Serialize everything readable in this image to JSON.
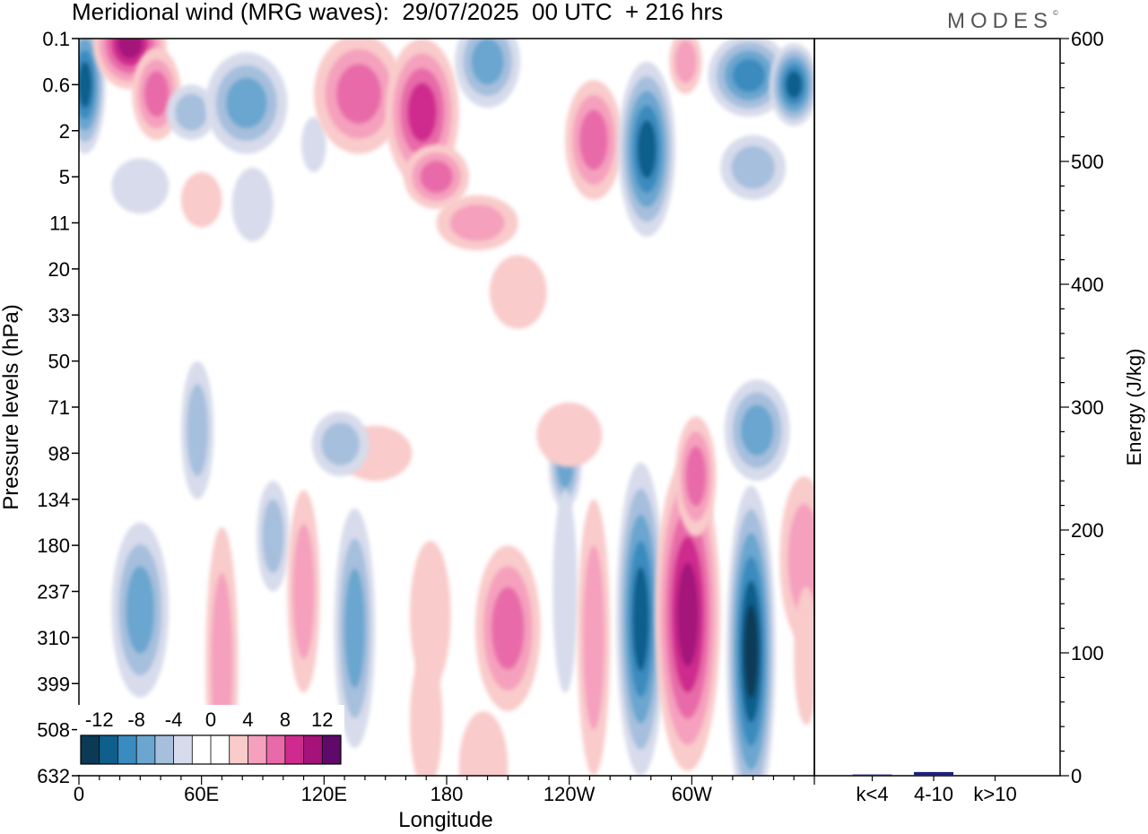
{
  "chart_data": {
    "type": "heatmap",
    "title": "Meridional wind (MRG waves):  29/07/2025  00 UTC  + 216 hrs",
    "logo": "MODES",
    "xlabel": "Longitude",
    "ylabel": "Pressure levels (hPa)",
    "x_ticks": [
      "0",
      "60E",
      "120E",
      "180",
      "120W",
      "60W"
    ],
    "x_tick_degrees": [
      0,
      60,
      120,
      180,
      240,
      300
    ],
    "x_range": [
      0,
      360
    ],
    "pressure_levels": [
      "0.1",
      "0.6",
      "2",
      "5",
      "11",
      "20",
      "33",
      "50",
      "71",
      "98",
      "134",
      "180",
      "237",
      "310",
      "399",
      "508",
      "632"
    ],
    "colorbar": {
      "tick_labels": [
        "-12",
        "-8",
        "-4",
        "0",
        "4",
        "8",
        "12"
      ],
      "colors": [
        "#0b3a56",
        "#0e5f8c",
        "#3a8bbf",
        "#6aa6cf",
        "#a6bfdd",
        "#d7dbeb",
        "#ffffff",
        "#ffffff",
        "#f9cbcb",
        "#f5a0bd",
        "#e86aa8",
        "#cf2b8e",
        "#a4127a",
        "#5f0a6a"
      ]
    },
    "features": [
      {
        "lon": 3,
        "level": 1.0,
        "value": -13,
        "rx": 10,
        "ry": 1.5
      },
      {
        "lon": 25,
        "level": 0.1,
        "value": 12,
        "rx": 18,
        "ry": 1.0
      },
      {
        "lon": 38,
        "level": 1.2,
        "value": 8,
        "rx": 12,
        "ry": 1.0
      },
      {
        "lon": 55,
        "level": 1.6,
        "value": -6,
        "rx": 12,
        "ry": 0.6
      },
      {
        "lon": 82,
        "level": 1.4,
        "value": -9,
        "rx": 20,
        "ry": 1.1
      },
      {
        "lon": 115,
        "level": 2.3,
        "value": -4,
        "rx": 6,
        "ry": 0.6
      },
      {
        "lon": 137,
        "level": 1.2,
        "value": 9,
        "rx": 22,
        "ry": 1.3
      },
      {
        "lon": 168,
        "level": 1.6,
        "value": 11,
        "rx": 18,
        "ry": 1.6
      },
      {
        "lon": 175,
        "level": 3.0,
        "value": 9,
        "rx": 16,
        "ry": 0.7
      },
      {
        "lon": 195,
        "level": 4.0,
        "value": 6,
        "rx": 20,
        "ry": 0.6
      },
      {
        "lon": 200,
        "level": 0.5,
        "value": -8,
        "rx": 16,
        "ry": 1.0
      },
      {
        "lon": 252,
        "level": 2.2,
        "value": 8,
        "rx": 14,
        "ry": 1.3
      },
      {
        "lon": 278,
        "level": 2.4,
        "value": -12,
        "rx": 14,
        "ry": 1.9
      },
      {
        "lon": 297,
        "level": 0.5,
        "value": 7,
        "rx": 8,
        "ry": 0.7
      },
      {
        "lon": 328,
        "level": 0.8,
        "value": -10,
        "rx": 20,
        "ry": 0.9
      },
      {
        "lon": 350,
        "level": 1.0,
        "value": -13,
        "rx": 12,
        "ry": 0.9
      },
      {
        "lon": 330,
        "level": 2.8,
        "value": -7,
        "rx": 16,
        "ry": 0.7
      },
      {
        "lon": 30,
        "level": 3.2,
        "value": -4,
        "rx": 14,
        "ry": 0.6
      },
      {
        "lon": 85,
        "level": 3.6,
        "value": -4,
        "rx": 10,
        "ry": 0.8
      },
      {
        "lon": 32,
        "level": 5.7,
        "value": -3,
        "rx": 14,
        "ry": 0.6
      },
      {
        "lon": 60,
        "level": 3.5,
        "value": 4,
        "rx": 10,
        "ry": 0.6
      },
      {
        "lon": 215,
        "level": 5.5,
        "value": 4,
        "rx": 14,
        "ry": 0.8
      },
      {
        "lon": 330,
        "level": 5.8,
        "value": -3,
        "rx": 12,
        "ry": 1.0
      },
      {
        "lon": 12,
        "level": 7.0,
        "value": -3,
        "rx": 6,
        "ry": 1.5
      },
      {
        "lon": 58,
        "level": 8.5,
        "value": -7,
        "rx": 8,
        "ry": 1.5
      },
      {
        "lon": 145,
        "level": 9.0,
        "value": 4,
        "rx": 18,
        "ry": 0.6
      },
      {
        "lon": 128,
        "level": 8.8,
        "value": -6,
        "rx": 14,
        "ry": 0.7
      },
      {
        "lon": 238,
        "level": 9.3,
        "value": -8,
        "rx": 8,
        "ry": 0.9
      },
      {
        "lon": 240,
        "level": 8.6,
        "value": 4,
        "rx": 16,
        "ry": 0.7
      },
      {
        "lon": 332,
        "level": 8.5,
        "value": -8,
        "rx": 16,
        "ry": 1.1
      },
      {
        "lon": 30,
        "level": 12.4,
        "value": -9,
        "rx": 14,
        "ry": 1.9
      },
      {
        "lon": 70,
        "level": 13.6,
        "value": 6,
        "rx": 8,
        "ry": 3.0
      },
      {
        "lon": 95,
        "level": 10.8,
        "value": -6,
        "rx": 8,
        "ry": 1.2
      },
      {
        "lon": 110,
        "level": 12.0,
        "value": 6,
        "rx": 8,
        "ry": 2.2
      },
      {
        "lon": 93,
        "level": 12.5,
        "value": 3,
        "rx": 18,
        "ry": 3.5
      },
      {
        "lon": 135,
        "level": 12.8,
        "value": -9,
        "rx": 10,
        "ry": 2.6
      },
      {
        "lon": 172,
        "level": 12.5,
        "value": 5,
        "rx": 10,
        "ry": 1.6
      },
      {
        "lon": 210,
        "level": 12.8,
        "value": 8,
        "rx": 16,
        "ry": 1.8
      },
      {
        "lon": 238,
        "level": 12.0,
        "value": -5,
        "rx": 6,
        "ry": 2.2
      },
      {
        "lon": 252,
        "level": 13.0,
        "value": 6,
        "rx": 8,
        "ry": 3.0
      },
      {
        "lon": 275,
        "level": 12.6,
        "value": -13,
        "rx": 12,
        "ry": 3.4
      },
      {
        "lon": 298,
        "level": 12.5,
        "value": 13,
        "rx": 16,
        "ry": 3.4
      },
      {
        "lon": 302,
        "level": 9.5,
        "value": 8,
        "rx": 10,
        "ry": 1.3
      },
      {
        "lon": 329,
        "level": 13.3,
        "value": -14,
        "rx": 12,
        "ry": 3.6
      },
      {
        "lon": 355,
        "level": 11.3,
        "value": 6,
        "rx": 12,
        "ry": 1.8
      },
      {
        "lon": 356,
        "level": 13.4,
        "value": 5,
        "rx": 6,
        "ry": 1.5
      },
      {
        "lon": 198,
        "level": 15.8,
        "value": 5,
        "rx": 12,
        "ry": 1.2
      },
      {
        "lon": 170,
        "level": 14.8,
        "value": 5,
        "rx": 8,
        "ry": 1.5
      }
    ],
    "energy_panel": {
      "ylabel": "Energy (J/kg)",
      "ylim": [
        0,
        600
      ],
      "y_ticks": [
        "0",
        "100",
        "200",
        "300",
        "400",
        "500",
        "600"
      ],
      "categories": [
        "k<4",
        "4-10",
        "k>10"
      ],
      "values": [
        1,
        3,
        0
      ],
      "bar_color": "#1f1f7a"
    }
  }
}
